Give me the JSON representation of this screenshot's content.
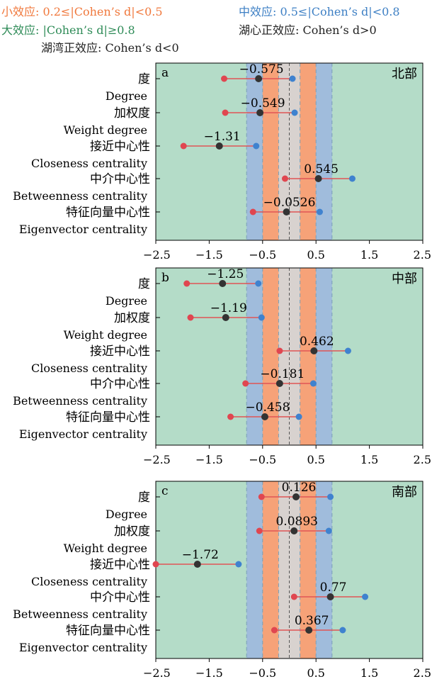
{
  "legend": {
    "small": "小效应: 0.2≤|Cohen’s d|<0.5",
    "medium": "中效应: 0.5≤|Cohen’s d|<0.8",
    "large": "大效应: |Cohen’s d|≥0.8",
    "positive": "湖心正效应: Cohen’s d>0",
    "negative": "湖湾正效应: Cohen’s d<0"
  },
  "colors": {
    "large": "#b4dcc8",
    "medium": "#a0bcdc",
    "small": "#f6a278",
    "negligible": "#d8d2cf",
    "point_low": "#e04650",
    "point_mid": "#333333",
    "point_high": "#3f82cf",
    "whisker": "#e05555"
  },
  "chart_data": [
    {
      "type": "forest",
      "panel_label": "a",
      "region": "北部",
      "categories": [
        "度",
        "加权度",
        "接近中心性",
        "中介中心性",
        "特征向量中心性"
      ],
      "categories_en": [
        "Degree",
        "Weight degree",
        "Closeness centrality",
        "Betweenness centrality",
        "Eigenvector centrality"
      ],
      "values": [
        -0.575,
        -0.549,
        -1.31,
        0.545,
        -0.0526
      ],
      "value_labels": [
        "−0.575",
        "−0.549",
        "−1.31",
        "0.545",
        "−0.0526"
      ],
      "ci_low": [
        -1.22,
        -1.2,
        -1.98,
        -0.08,
        -0.68
      ],
      "ci_high": [
        0.06,
        0.1,
        -0.62,
        1.18,
        0.57
      ],
      "xlim": [
        -2.5,
        2.5
      ],
      "xticks": [
        "−2.5",
        "−1.5",
        "−0.5",
        "0.5",
        "1.5",
        "2.5"
      ],
      "bands": {
        "negligible": 0.2,
        "small": 0.5,
        "medium": 0.8
      }
    },
    {
      "type": "forest",
      "panel_label": "b",
      "region": "中部",
      "categories": [
        "度",
        "加权度",
        "接近中心性",
        "中介中心性",
        "特征向量中心性"
      ],
      "categories_en": [
        "Degree",
        "Weight degree",
        "Closeness centrality",
        "Betweenness centrality",
        "Eigenvector centrality"
      ],
      "values": [
        -1.25,
        -1.19,
        0.462,
        -0.181,
        -0.458
      ],
      "value_labels": [
        "−1.25",
        "−1.19",
        "0.462",
        "−0.181",
        "−0.458"
      ],
      "ci_low": [
        -1.92,
        -1.85,
        -0.18,
        -0.82,
        -1.1
      ],
      "ci_high": [
        -0.58,
        -0.52,
        1.1,
        0.45,
        0.18
      ],
      "xlim": [
        -2.5,
        2.5
      ],
      "xticks": [
        "−2.5",
        "−1.5",
        "−0.5",
        "0.5",
        "1.5",
        "2.5"
      ],
      "bands": {
        "negligible": 0.2,
        "small": 0.5,
        "medium": 0.8
      }
    },
    {
      "type": "forest",
      "panel_label": "c",
      "region": "南部",
      "categories": [
        "度",
        "加权度",
        "接近中心性",
        "中介中心性",
        "特征向量中心性"
      ],
      "categories_en": [
        "Degree",
        "Weight degree",
        "Closeness centrality",
        "Betweenness centrality",
        "Eigenvector centrality"
      ],
      "values": [
        0.126,
        0.0893,
        -1.72,
        0.77,
        0.367
      ],
      "value_labels": [
        "0.126",
        "0.0893",
        "−1.72",
        "0.77",
        "0.367"
      ],
      "ci_low": [
        -0.52,
        -0.56,
        -2.5,
        0.09,
        -0.28
      ],
      "ci_high": [
        0.77,
        0.74,
        -0.95,
        1.42,
        1.0
      ],
      "xlim": [
        -2.5,
        2.5
      ],
      "xticks": [
        "−2.5",
        "−1.5",
        "−0.5",
        "0.5",
        "1.5",
        "2.5"
      ],
      "bands": {
        "negligible": 0.2,
        "small": 0.5,
        "medium": 0.8
      }
    }
  ]
}
